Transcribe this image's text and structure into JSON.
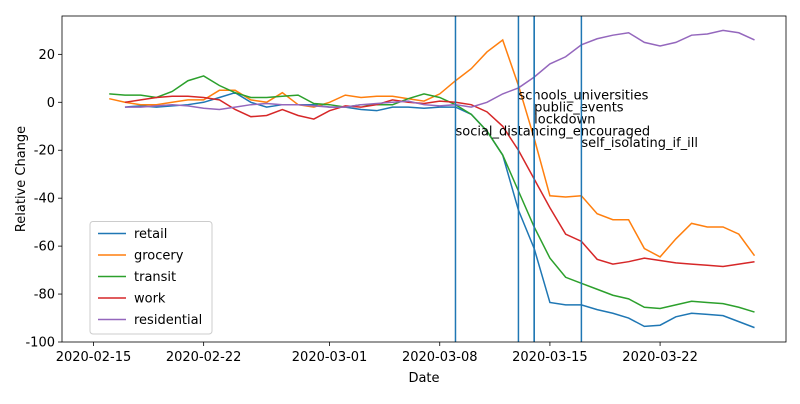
{
  "chart_data": {
    "type": "line",
    "xlabel": "Date",
    "ylabel": "Relative Change",
    "x": [
      "2020-02-16",
      "2020-02-17",
      "2020-02-18",
      "2020-02-19",
      "2020-02-20",
      "2020-02-21",
      "2020-02-22",
      "2020-02-23",
      "2020-02-24",
      "2020-02-25",
      "2020-02-26",
      "2020-02-27",
      "2020-02-28",
      "2020-02-29",
      "2020-03-01",
      "2020-03-02",
      "2020-03-03",
      "2020-03-04",
      "2020-03-05",
      "2020-03-06",
      "2020-03-07",
      "2020-03-08",
      "2020-03-09",
      "2020-03-10",
      "2020-03-11",
      "2020-03-12",
      "2020-03-13",
      "2020-03-14",
      "2020-03-15",
      "2020-03-16",
      "2020-03-17",
      "2020-03-18",
      "2020-03-19",
      "2020-03-20",
      "2020-03-21",
      "2020-03-22",
      "2020-03-23",
      "2020-03-24",
      "2020-03-25",
      "2020-03-26",
      "2020-03-27",
      "2020-03-28"
    ],
    "series": [
      {
        "name": "retail",
        "color": "#1f77b4",
        "values": [
          null,
          -2,
          -1.5,
          -2,
          -1.5,
          -1,
          0,
          2,
          4,
          0,
          -2,
          -1,
          -1,
          -1,
          -2,
          -2,
          -3,
          -3.5,
          -2,
          -2,
          -2.5,
          -2,
          -2,
          -5,
          -12,
          -22,
          -45,
          -61,
          -83.5,
          -84.5,
          -84.5,
          -86.5,
          -88,
          -90,
          -93.5,
          -93,
          -89.5,
          -88,
          -88.5,
          -89,
          -91.5,
          -94
        ]
      },
      {
        "name": "grocery",
        "color": "#ff7f0e",
        "values": [
          1.5,
          0,
          -1,
          -1,
          0,
          1,
          1,
          5,
          5,
          1,
          0,
          4,
          -1,
          -2,
          0,
          3,
          2,
          2.5,
          2.5,
          1.5,
          0.5,
          3.5,
          9,
          14,
          21,
          26,
          7,
          -15,
          -39,
          -39.5,
          -39,
          -46.5,
          -49,
          -49,
          -61,
          -64.5,
          -57,
          -50.5,
          -52,
          -52,
          -55,
          -64
        ]
      },
      {
        "name": "transit",
        "color": "#2ca02c",
        "values": [
          3.5,
          3,
          3,
          2,
          4.5,
          9,
          11,
          7,
          4,
          2,
          2,
          2.5,
          3,
          -0.5,
          -1,
          -2,
          -1,
          -1,
          -1,
          1.5,
          3.5,
          2,
          -1,
          -5,
          -12,
          -22,
          -37,
          -52,
          -65,
          -73,
          -75.5,
          -78,
          -80.5,
          -82,
          -85.5,
          -86,
          -84.5,
          -83,
          -83.5,
          -84,
          -85.5,
          -87.5
        ]
      },
      {
        "name": "work",
        "color": "#d62728",
        "values": [
          null,
          0,
          1,
          2,
          2.5,
          2.5,
          2,
          1,
          -3,
          -6,
          -5.5,
          -3,
          -5.5,
          -7,
          -3.5,
          -1.5,
          -2,
          -1,
          1,
          0,
          -0.5,
          0.5,
          0,
          -1,
          -4,
          -10,
          -20,
          -32,
          -44,
          -55,
          -58,
          -65.5,
          -67.5,
          -66.5,
          -65,
          -66,
          -67,
          -67.5,
          -68,
          -68.5,
          -67.5,
          -66.5
        ]
      },
      {
        "name": "residential",
        "color": "#9467bd",
        "values": [
          null,
          -2,
          -2,
          -1.5,
          -1,
          -1.5,
          -2.5,
          -3,
          -2,
          -1,
          -0.5,
          -1,
          -1,
          -1.5,
          -2,
          -2,
          -1,
          -0.5,
          0,
          0.5,
          -1,
          -1.5,
          -1,
          -2,
          0,
          3.5,
          6,
          10.5,
          16,
          19,
          24,
          26.5,
          28,
          29,
          25,
          23.5,
          25,
          28,
          28.5,
          30,
          29,
          26
        ]
      }
    ],
    "annotations": [
      {
        "text": "social_distancing_encouraged",
        "x": "2020-03-09",
        "y": -15
      },
      {
        "text": "schools_universities",
        "x": "2020-03-13",
        "y": 0
      },
      {
        "text": "public_events",
        "x": "2020-03-14",
        "y": -5
      },
      {
        "text": "lockdown",
        "x": "2020-03-14",
        "y": -10
      },
      {
        "text": "self_isolating_if_ill",
        "x": "2020-03-17",
        "y": -20
      }
    ],
    "annotation_color": "#1f77b4",
    "xlim": [
      "2020-02-13",
      "2020-03-30"
    ],
    "xticks": [
      "2020-02-15",
      "2020-02-22",
      "2020-03-01",
      "2020-03-08",
      "2020-03-15",
      "2020-03-22"
    ],
    "ylim": [
      -100,
      36
    ],
    "yticks": [
      -100,
      -80,
      -60,
      -40,
      -20,
      0,
      20
    ],
    "grid": false,
    "legend": "lower left"
  }
}
